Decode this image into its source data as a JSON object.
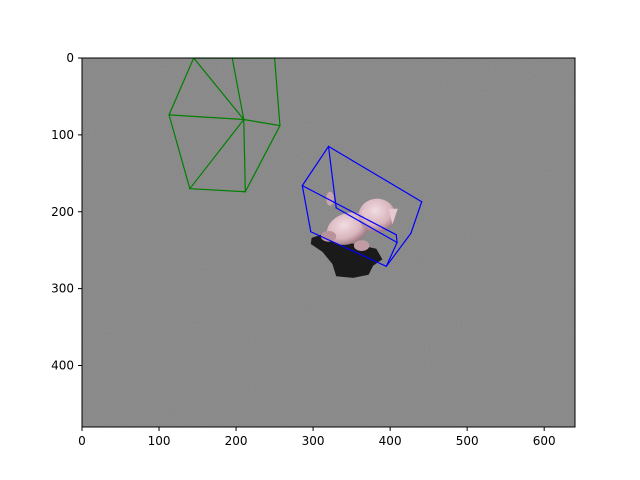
{
  "chart_data": {
    "type": "image_with_3d_bounding_boxes",
    "xlim": [
      0,
      640
    ],
    "ylim": [
      480,
      0
    ],
    "y_axis_inverted": true,
    "grid": false,
    "x_ticks": [
      0,
      100,
      200,
      300,
      400,
      500,
      600
    ],
    "y_ticks": [
      0,
      100,
      200,
      300,
      400
    ],
    "x_tick_labels": [
      "0",
      "100",
      "200",
      "300",
      "400",
      "500",
      "600"
    ],
    "y_tick_labels": [
      "0",
      "100",
      "200",
      "300",
      "400"
    ],
    "background_color": "#858585",
    "object": {
      "description": "pink cat toy",
      "color": "#e7c8cf",
      "shadow_color": "#141414"
    },
    "boxes": [
      {
        "color": "#008000",
        "vertices": [
          [
            195,
            0
          ],
          [
            250,
            0
          ],
          [
            257,
            88
          ],
          [
            210,
            80
          ],
          [
            113,
            74
          ],
          [
            145,
            0
          ],
          [
            212,
            174
          ],
          [
            140,
            170
          ]
        ],
        "edges": [
          [
            0,
            1
          ],
          [
            0,
            3
          ],
          [
            1,
            2
          ],
          [
            2,
            3
          ],
          [
            3,
            6
          ],
          [
            2,
            6
          ],
          [
            6,
            7
          ],
          [
            7,
            3
          ],
          [
            4,
            3
          ],
          [
            4,
            5
          ],
          [
            4,
            7
          ],
          [
            5,
            0
          ],
          [
            1,
            5
          ],
          [
            5,
            3
          ]
        ]
      },
      {
        "color": "#0000ff",
        "vertices": [
          [
            320,
            115
          ],
          [
            441,
            187
          ],
          [
            330,
            195
          ],
          [
            286,
            166
          ],
          [
            409,
            240
          ],
          [
            297,
            226
          ],
          [
            408,
            230
          ],
          [
            395,
            271
          ],
          [
            427,
            228
          ]
        ],
        "edges": [
          [
            0,
            1
          ],
          [
            0,
            3
          ],
          [
            3,
            5
          ],
          [
            5,
            7
          ],
          [
            7,
            4
          ],
          [
            4,
            2
          ],
          [
            2,
            0
          ],
          [
            1,
            8
          ],
          [
            8,
            7
          ],
          [
            3,
            6
          ],
          [
            6,
            4
          ]
        ]
      }
    ]
  }
}
